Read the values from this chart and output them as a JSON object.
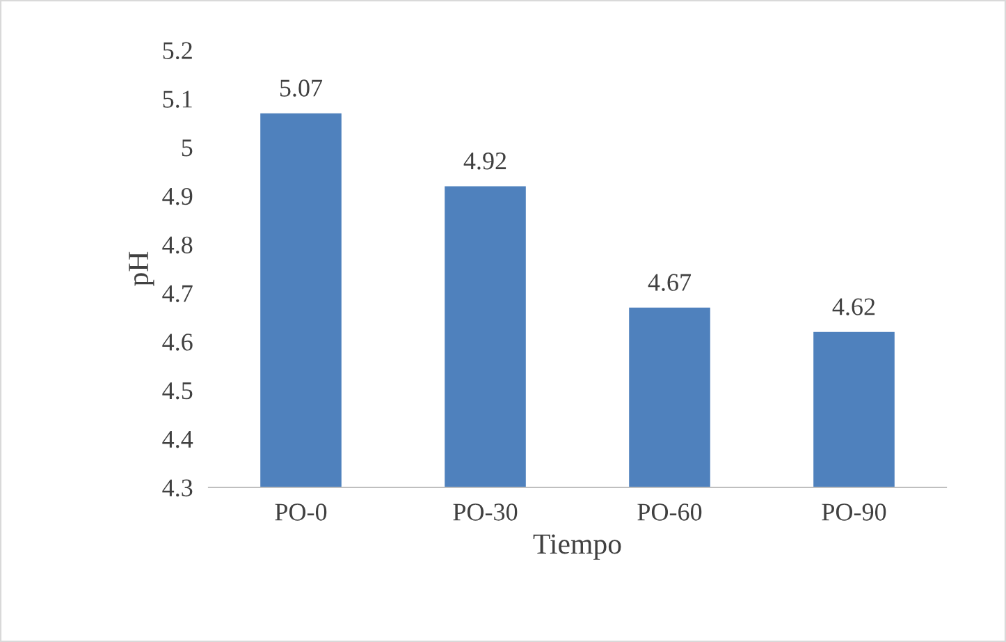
{
  "chart_data": {
    "type": "bar",
    "categories": [
      "PO-0",
      "PO-30",
      "PO-60",
      "PO-90"
    ],
    "values": [
      5.07,
      4.92,
      4.67,
      4.62
    ],
    "color": "#4f81bd",
    "xlabel": "Tiempo",
    "ylabel": "pH",
    "ylim": [
      4.3,
      5.2
    ],
    "yticks": [
      4.3,
      4.4,
      4.5,
      4.6,
      4.7,
      4.8,
      4.9,
      5,
      5.1,
      5.2
    ],
    "data_labels": true,
    "grid": false,
    "legend": false
  }
}
